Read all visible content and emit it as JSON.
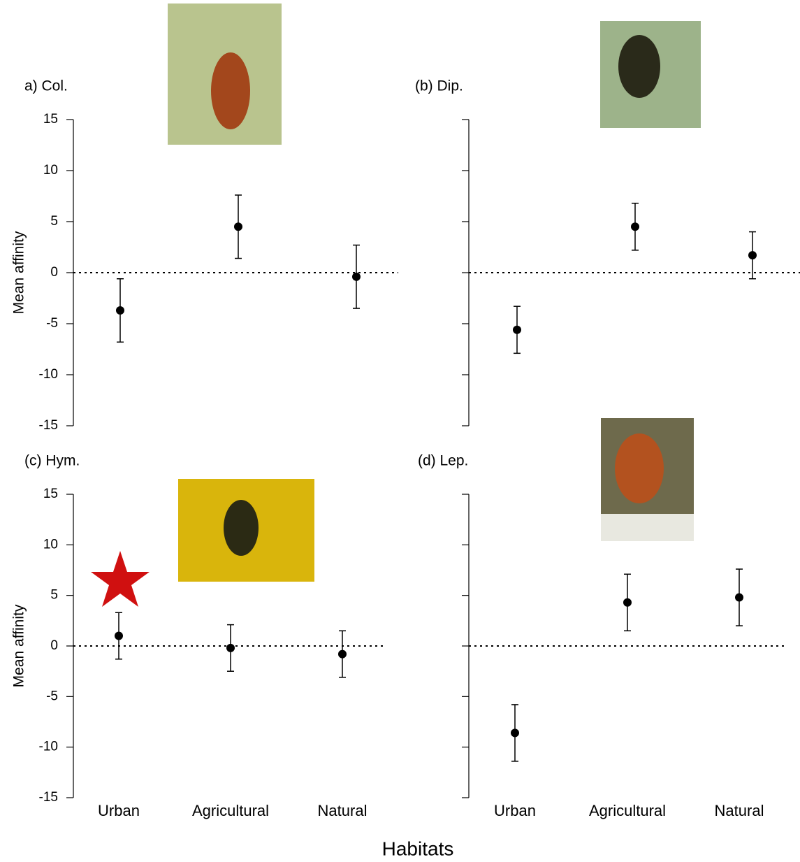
{
  "xlabel": "Habitats",
  "chart_data": [
    {
      "type": "errorbar",
      "title": "a) Col.",
      "ylabel": "Mean affinity",
      "categories": [
        null,
        null,
        null
      ],
      "values": [
        -3.7,
        4.5,
        -0.4
      ],
      "errors": [
        3.1,
        3.1,
        3.1
      ],
      "color": "#000000",
      "ylim": [
        -15,
        15
      ],
      "yticks": [
        -15,
        -10,
        -5,
        0,
        5,
        10,
        15
      ],
      "show_ytick_labels": true,
      "hline": 0
    },
    {
      "type": "errorbar",
      "title": "(b) Dip.",
      "categories": [
        null,
        null,
        null
      ],
      "values": [
        -5.6,
        4.5,
        1.7
      ],
      "errors": [
        2.3,
        2.3,
        2.3
      ],
      "color": "#000000",
      "ylim": [
        -15,
        15
      ],
      "yticks": [
        -15,
        -10,
        -5,
        0,
        5,
        10,
        15
      ],
      "show_ytick_labels": false,
      "hline": 0
    },
    {
      "type": "errorbar",
      "title": "(c) Hym.",
      "ylabel": "Mean affinity",
      "categories": [
        "Urban",
        "Agricultural",
        "Natural"
      ],
      "values": [
        1.0,
        -0.2,
        -0.8
      ],
      "errors": [
        2.3,
        2.3,
        2.3
      ],
      "color": "#000000",
      "ylim": [
        -15,
        15
      ],
      "yticks": [
        -15,
        -10,
        -5,
        0,
        5,
        10,
        15
      ],
      "show_ytick_labels": true,
      "hline": 0
    },
    {
      "type": "errorbar",
      "title": "(d) Lep.",
      "categories": [
        "Urban",
        "Agricultural",
        "Natural"
      ],
      "values": [
        -8.6,
        4.3,
        4.8
      ],
      "errors": [
        2.8,
        2.8,
        2.8
      ],
      "color": "#000000",
      "ylim": [
        -15,
        15
      ],
      "yticks": [
        -15,
        -10,
        -5,
        0,
        5,
        10,
        15
      ],
      "show_ytick_labels": false,
      "hline": 0
    }
  ]
}
